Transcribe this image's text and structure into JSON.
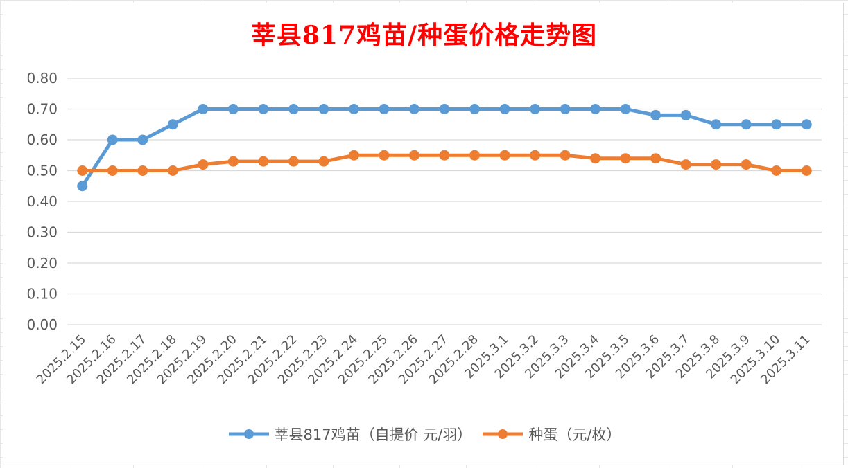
{
  "colors": {
    "title": "#ff0000",
    "series_1": "#5b9bd5",
    "series_2": "#ed7d31",
    "grid": "#d9d9d9",
    "tick_text": "#595959"
  },
  "chart_data": {
    "type": "line",
    "title": "莘县817鸡苗/种蛋价格走势图",
    "xlabel": "",
    "ylabel": "",
    "ylim": [
      0,
      0.8
    ],
    "yticks": [
      "0.00",
      "0.10",
      "0.20",
      "0.30",
      "0.40",
      "0.50",
      "0.60",
      "0.70",
      "0.80"
    ],
    "grid": true,
    "legend_position": "bottom",
    "categories": [
      "2025.2.15",
      "2025.2.16",
      "2025.2.17",
      "2025.2.18",
      "2025.2.19",
      "2025.2.20",
      "2025.2.21",
      "2025.2.22",
      "2025.2.23",
      "2025.2.24",
      "2025.2.25",
      "2025.2.26",
      "2025.2.27",
      "2025.2.28",
      "2025.3.1",
      "2025.3.2",
      "2025.3.3",
      "2025.3.4",
      "2025.3.5",
      "2025.3.6",
      "2025.3.7",
      "2025.3.8",
      "2025.3.9",
      "2025.3.10",
      "2025.3.11"
    ],
    "series": [
      {
        "name": "莘县817鸡苗（自提价 元/羽）",
        "values": [
          0.45,
          0.6,
          0.6,
          0.65,
          0.7,
          0.7,
          0.7,
          0.7,
          0.7,
          0.7,
          0.7,
          0.7,
          0.7,
          0.7,
          0.7,
          0.7,
          0.7,
          0.7,
          0.7,
          0.68,
          0.68,
          0.65,
          0.65,
          0.65,
          0.65
        ]
      },
      {
        "name": "种蛋（元/枚）",
        "values": [
          0.5,
          0.5,
          0.5,
          0.5,
          0.52,
          0.53,
          0.53,
          0.53,
          0.53,
          0.55,
          0.55,
          0.55,
          0.55,
          0.55,
          0.55,
          0.55,
          0.55,
          0.54,
          0.54,
          0.54,
          0.52,
          0.52,
          0.52,
          0.5,
          0.5
        ]
      }
    ]
  }
}
